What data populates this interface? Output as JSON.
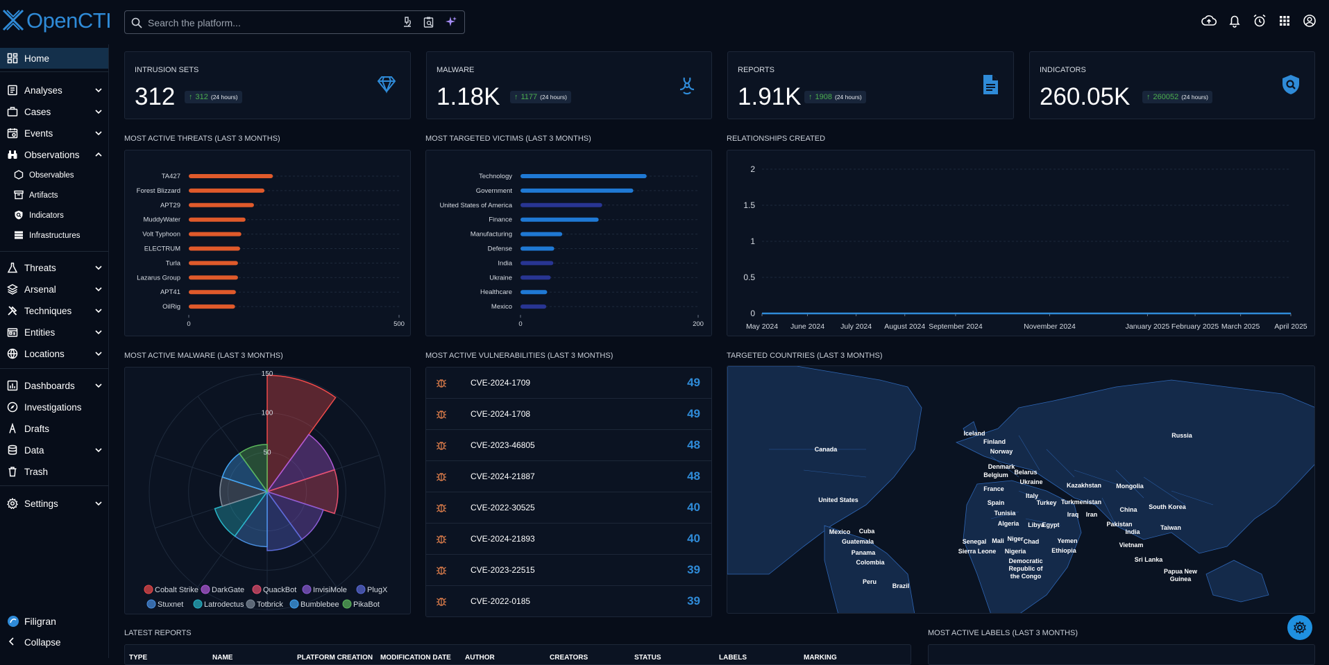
{
  "app": {
    "name": "OpenCTI"
  },
  "search": {
    "placeholder": "Search the platform..."
  },
  "sidebar": {
    "items": [
      {
        "label": "Home",
        "icon": "dashboard-icon"
      },
      {
        "label": "Analyses",
        "icon": "analyses-icon"
      },
      {
        "label": "Cases",
        "icon": "briefcase-icon"
      },
      {
        "label": "Events",
        "icon": "events-icon"
      },
      {
        "label": "Observations",
        "icon": "binoculars-icon"
      },
      {
        "label": "Observables",
        "icon": "hexagon-icon"
      },
      {
        "label": "Artifacts",
        "icon": "archive-icon"
      },
      {
        "label": "Indicators",
        "icon": "shield-search-icon"
      },
      {
        "label": "Infrastructures",
        "icon": "server-icon"
      },
      {
        "label": "Threats",
        "icon": "flask-icon"
      },
      {
        "label": "Arsenal",
        "icon": "layers-icon"
      },
      {
        "label": "Techniques",
        "icon": "tools-icon"
      },
      {
        "label": "Entities",
        "icon": "entities-icon"
      },
      {
        "label": "Locations",
        "icon": "globe-icon"
      },
      {
        "label": "Dashboards",
        "icon": "chart-board-icon"
      },
      {
        "label": "Investigations",
        "icon": "compass-icon"
      },
      {
        "label": "Drafts",
        "icon": "drafts-icon"
      },
      {
        "label": "Data",
        "icon": "database-icon"
      },
      {
        "label": "Trash",
        "icon": "trash-icon"
      },
      {
        "label": "Settings",
        "icon": "gear-icon"
      }
    ],
    "footer": {
      "brand": "Filigran",
      "collapse": "Collapse"
    }
  },
  "stats": [
    {
      "label": "INTRUSION SETS",
      "value": "312",
      "delta": "312",
      "timeframe": "(24 hours)",
      "icon": "diamond-icon"
    },
    {
      "label": "MALWARE",
      "value": "1.18K",
      "delta": "1177",
      "timeframe": "(24 hours)",
      "icon": "biohazard-icon"
    },
    {
      "label": "REPORTS",
      "value": "1.91K",
      "delta": "1908",
      "timeframe": "(24 hours)",
      "icon": "document-icon"
    },
    {
      "label": "INDICATORS",
      "value": "260.05K",
      "delta": "260052",
      "timeframe": "(24 hours)",
      "icon": "shield-search-icon"
    }
  ],
  "sections": {
    "threats": "MOST ACTIVE THREATS (LAST 3 MONTHS)",
    "victims": "MOST TARGETED VICTIMS (LAST 3 MONTHS)",
    "relationships": "RELATIONSHIPS CREATED",
    "malware": "MOST ACTIVE MALWARE (LAST 3 MONTHS)",
    "vulnerabilities": "MOST ACTIVE VULNERABILITIES (LAST 3 MONTHS)",
    "countries": "TARGETED COUNTRIES (LAST 3 MONTHS)",
    "reports": "LATEST REPORTS",
    "labels": "MOST ACTIVE LABELS (LAST 3 MONTHS)"
  },
  "colors": {
    "accent": "#2f8bd8",
    "orange": "#e05a2b",
    "blue": "#1f79d4",
    "navy": "#283593",
    "positive": "#4cae4f"
  },
  "chart_data": [
    {
      "type": "bar",
      "orientation": "horizontal",
      "categories": [
        "TA427",
        "Forest Blizzard",
        "APT29",
        "MuddyWater",
        "Volt Typhoon",
        "ELECTRUM",
        "Turla",
        "Lazarus Group",
        "APT41",
        "OilRig"
      ],
      "values": [
        200,
        180,
        155,
        135,
        125,
        122,
        117,
        117,
        112,
        110
      ],
      "xlim": [
        0,
        500
      ],
      "xticks": [
        0,
        500
      ],
      "color": "#e05a2b"
    },
    {
      "type": "bar",
      "orientation": "horizontal",
      "categories": [
        "Technology",
        "Government",
        "United States of America",
        "Finance",
        "Manufacturing",
        "Defense",
        "India",
        "Ukraine",
        "Healthcare",
        "Mexico"
      ],
      "values": [
        142,
        127,
        92,
        88,
        47,
        38,
        37,
        34,
        30,
        29
      ],
      "colors": [
        "#1f79d4",
        "#1f79d4",
        "#283593",
        "#1f79d4",
        "#1f79d4",
        "#1f79d4",
        "#283593",
        "#283593",
        "#1f79d4",
        "#283593"
      ],
      "xlim": [
        0,
        200
      ],
      "xticks": [
        0,
        200
      ]
    },
    {
      "type": "line",
      "x": [
        "May 2024",
        "June 2024",
        "July 2024",
        "August 2024",
        "September 2024",
        "November 2024",
        "January 2025",
        "February 2025",
        "March 2025",
        "April 2025"
      ],
      "y": [
        0,
        0,
        0,
        0,
        0,
        0,
        0,
        0,
        0,
        0
      ],
      "ylim": [
        0,
        2
      ],
      "yticks": [
        "0",
        "0.5",
        "1",
        "1.5",
        "2"
      ]
    },
    {
      "type": "polar-area",
      "categories": [
        "Cobalt Strike",
        "DarkGate",
        "QuackBot",
        "InvisiMole",
        "PlugX",
        "Stuxnet",
        "Latrodectus",
        "Totbrick",
        "Bumblebee",
        "PikaBot"
      ],
      "values": [
        148,
        90,
        90,
        75,
        75,
        70,
        70,
        60,
        60,
        60
      ],
      "rticks": [
        "50",
        "100",
        "150"
      ],
      "rmax": 150,
      "colors": [
        "#ef4b4b",
        "#b05ad8",
        "#e8506e",
        "#8b5cd6",
        "#5b6bd8",
        "#4a90e2",
        "#29b6c8",
        "#7f8c9a",
        "#42a5f5",
        "#5cb85c"
      ]
    }
  ],
  "vulnerabilities": [
    {
      "name": "CVE-2024-1709",
      "count": "49"
    },
    {
      "name": "CVE-2024-1708",
      "count": "49"
    },
    {
      "name": "CVE-2023-46805",
      "count": "48"
    },
    {
      "name": "CVE-2024-21887",
      "count": "48"
    },
    {
      "name": "CVE-2022-30525",
      "count": "40"
    },
    {
      "name": "CVE-2024-21893",
      "count": "40"
    },
    {
      "name": "CVE-2023-22515",
      "count": "39"
    },
    {
      "name": "CVE-2022-0185",
      "count": "39"
    }
  ],
  "countries": [
    "Canada",
    "Iceland",
    "Finland",
    "Russia",
    "Norway",
    "Denmark",
    "Belarus",
    "Belgium",
    "Ukraine",
    "France",
    "Kazakhstan",
    "Mongolia",
    "Italy",
    "Spain",
    "Turkey",
    "Turkmenistan",
    "United States",
    "Tunisia",
    "Iraq",
    "Iran",
    "China",
    "South Korea",
    "Algeria",
    "Libya",
    "Egypt",
    "Pakistan",
    "Taiwan",
    "Mexico",
    "Cuba",
    "India",
    "Guatemala",
    "Senegal",
    "Mali",
    "Niger",
    "Chad",
    "Yemen",
    "Vietnam",
    "Sierra Leone",
    "Nigeria",
    "Ethiopia",
    "Panama",
    "Sri Lanka",
    "Colombia",
    "Democratic Republic of the Congo",
    "Papua New Guinea",
    "Peru",
    "Brazil"
  ],
  "reports_table": {
    "columns": [
      "TYPE",
      "NAME",
      "PLATFORM CREATION",
      "MODIFICATION DATE",
      "AUTHOR",
      "CREATORS",
      "STATUS",
      "LABELS",
      "MARKING"
    ]
  }
}
